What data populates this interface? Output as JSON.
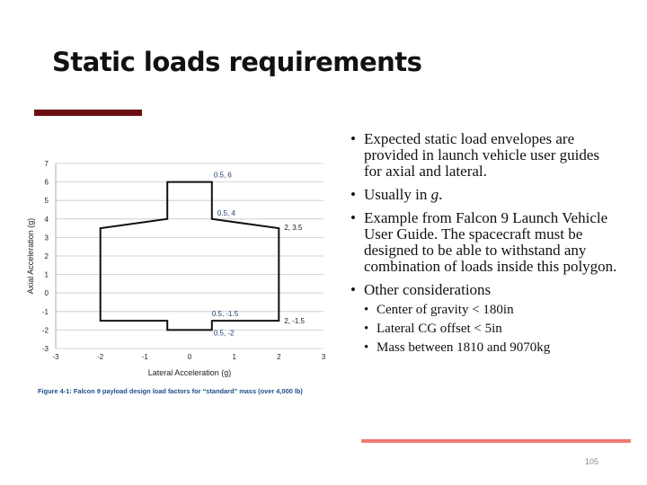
{
  "slide": {
    "title": "Static loads requirements",
    "page_number": "105",
    "accent_color": "#6b0f12",
    "footer_line_color": "#f07a72"
  },
  "bullets": {
    "b1": "Expected static load envelopes are provided in launch vehicle user guides for axial and lateral.",
    "b2_prefix": "Usually in ",
    "b2_var": "g",
    "b2_suffix": ".",
    "b3": "Example from Falcon 9 Launch Vehicle User Guide. The spacecraft must be designed to  be able to withstand any combination of loads inside this polygon.",
    "b4": "Other considerations",
    "sub": [
      "Center of gravity < 180in",
      "Lateral CG offset < 5in",
      "Mass between 1810 and 9070kg"
    ]
  },
  "chart_data": {
    "type": "line",
    "caption": "Figure 4-1: Falcon 9 payload design load factors for “standard” mass (over 4,000 lb)",
    "xlabel": "Lateral Acceleration (g)",
    "ylabel": "Axial Acceleration (g)",
    "xlim": [
      -3,
      3
    ],
    "ylim": [
      -3,
      7
    ],
    "xticks": [
      -3,
      -2,
      -1,
      0,
      1,
      2,
      3
    ],
    "yticks": [
      -3,
      -2,
      -1,
      0,
      1,
      2,
      3,
      4,
      5,
      6,
      7
    ],
    "grid": "horizontal",
    "series": [
      {
        "polygon": [
          [
            -0.5,
            6
          ],
          [
            0.5,
            6
          ],
          [
            0.5,
            4
          ],
          [
            2,
            3.5
          ],
          [
            2,
            -1.5
          ],
          [
            0.5,
            -1.5
          ],
          [
            0.5,
            -2
          ],
          [
            -0.5,
            -2
          ],
          [
            -0.5,
            -1.5
          ],
          [
            -2,
            -1.5
          ],
          [
            -2,
            3.5
          ],
          [
            -0.5,
            4
          ]
        ]
      }
    ],
    "annotations": [
      {
        "x": 0.5,
        "y": 6,
        "text": "0.5, 6"
      },
      {
        "x": 0.5,
        "y": 4,
        "text": "0.5, 4"
      },
      {
        "x": 2,
        "y": 3.5,
        "text": "2, 3.5"
      },
      {
        "x": 0.5,
        "y": -1.5,
        "text": "0.5, -1.5"
      },
      {
        "x": 2,
        "y": -1.5,
        "text": "2, -1.5"
      },
      {
        "x": 0.5,
        "y": -2,
        "text": "0.5, -2"
      }
    ]
  }
}
